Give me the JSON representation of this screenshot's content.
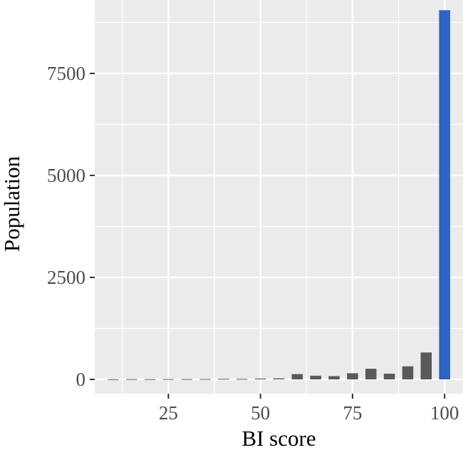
{
  "chart_data": {
    "type": "bar",
    "title": "",
    "xlabel": "BI score",
    "ylabel": "Population",
    "xlim": [
      5,
      105
    ],
    "ylim": [
      -350,
      9300
    ],
    "x_ticks": [
      25,
      50,
      75,
      100
    ],
    "x_tick_labels": [
      "25",
      "50",
      "75",
      "100"
    ],
    "y_ticks": [
      0,
      2500,
      5000,
      7500
    ],
    "y_tick_labels": [
      "0",
      "2500",
      "5000",
      "7500"
    ],
    "bin_width": 3,
    "grid": true,
    "legend": "none",
    "colors": {
      "panel": "#EBEBEB",
      "grid": "#FFFFFF",
      "bar": "#595959",
      "highlight_bar": "#2B63C6"
    },
    "bins": [
      {
        "x": 10,
        "value": 3
      },
      {
        "x": 15,
        "value": 6
      },
      {
        "x": 20,
        "value": 5
      },
      {
        "x": 25,
        "value": 8
      },
      {
        "x": 30,
        "value": 7
      },
      {
        "x": 35,
        "value": 9
      },
      {
        "x": 40,
        "value": 15
      },
      {
        "x": 45,
        "value": 12
      },
      {
        "x": 50,
        "value": 20
      },
      {
        "x": 55,
        "value": 25
      },
      {
        "x": 60,
        "value": 130
      },
      {
        "x": 65,
        "value": 90
      },
      {
        "x": 70,
        "value": 80
      },
      {
        "x": 75,
        "value": 150
      },
      {
        "x": 80,
        "value": 260
      },
      {
        "x": 85,
        "value": 140
      },
      {
        "x": 90,
        "value": 320
      },
      {
        "x": 95,
        "value": 660
      },
      {
        "x": 100,
        "value": 9050,
        "highlight": true
      }
    ]
  }
}
